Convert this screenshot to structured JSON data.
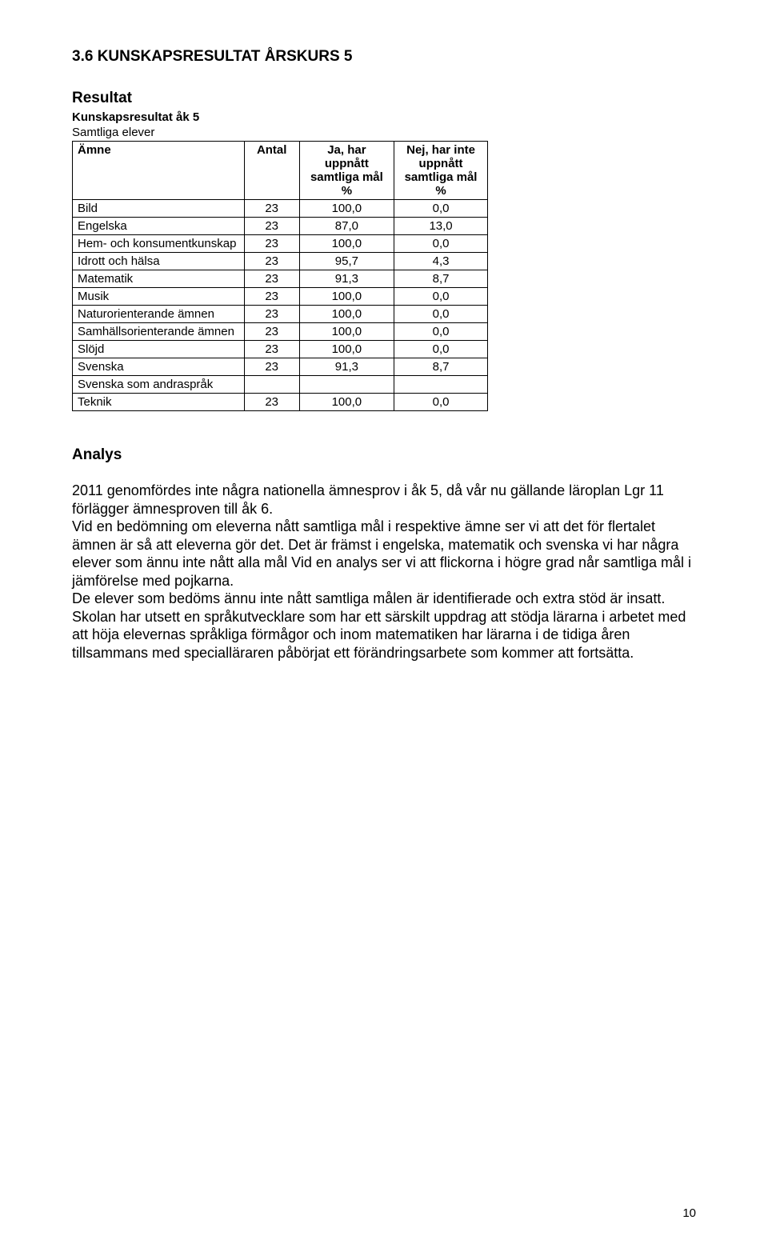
{
  "section_heading": "3.6  KUNSKAPSRESULTAT ÅRSKURS 5",
  "result_label": "Resultat",
  "table_title": "Kunskapsresultat åk 5",
  "subset_label": "Samtliga elever",
  "table": {
    "columns": {
      "subject": "Ämne",
      "count": "Antal",
      "yes": "Ja, har uppnått samtliga mål %",
      "no": "Nej, har inte uppnått samtliga mål %"
    },
    "col_widths": {
      "subject": 220,
      "count": 62,
      "yes": 120,
      "no": 118
    },
    "border_color": "#000000",
    "font_size": 15,
    "rows": [
      {
        "subject": "Bild",
        "n": "23",
        "yes": "100,0",
        "no": "0,0"
      },
      {
        "subject": "Engelska",
        "n": "23",
        "yes": "87,0",
        "no": "13,0"
      },
      {
        "subject": "Hem- och konsumentkunskap",
        "n": "23",
        "yes": "100,0",
        "no": "0,0"
      },
      {
        "subject": "Idrott och hälsa",
        "n": "23",
        "yes": "95,7",
        "no": "4,3"
      },
      {
        "subject": "Matematik",
        "n": "23",
        "yes": "91,3",
        "no": "8,7"
      },
      {
        "subject": "Musik",
        "n": "23",
        "yes": "100,0",
        "no": "0,0"
      },
      {
        "subject": "Naturorienterande ämnen",
        "n": "23",
        "yes": "100,0",
        "no": "0,0"
      },
      {
        "subject": "Samhällsorienterande ämnen",
        "n": "23",
        "yes": "100,0",
        "no": "0,0"
      },
      {
        "subject": "Slöjd",
        "n": "23",
        "yes": "100,0",
        "no": "0,0"
      },
      {
        "subject": "Svenska",
        "n": "23",
        "yes": "91,3",
        "no": "8,7"
      },
      {
        "subject": "Svenska som andraspråk",
        "n": "",
        "yes": "",
        "no": ""
      },
      {
        "subject": "Teknik",
        "n": "23",
        "yes": "100,0",
        "no": "0,0"
      }
    ]
  },
  "analysis_label": "Analys",
  "body_paragraphs": [
    "2011 genomfördes inte några nationella ämnesprov i åk 5, då vår nu gällande läroplan Lgr 11 förlägger ämnesproven till åk 6.",
    "Vid en bedömning om eleverna nått samtliga mål i respektive ämne ser vi att det för flertalet ämnen är så att eleverna gör det. Det är främst i engelska, matematik och svenska vi har några elever som ännu inte nått alla mål Vid en analys ser vi att flickorna i högre grad når samtliga mål i jämförelse med pojkarna.",
    "De elever som bedöms ännu inte nått samtliga målen är identifierade och extra stöd är insatt.",
    "Skolan har utsett en språkutvecklare som har ett särskilt uppdrag att stödja lärarna i arbetet med att höja elevernas språkliga förmågor och inom matematiken har lärarna i de tidiga åren tillsammans med specialläraren påbörjat ett förändringsarbete som kommer att fortsätta."
  ],
  "page_number": "10",
  "colors": {
    "text": "#000000",
    "background": "#ffffff"
  }
}
